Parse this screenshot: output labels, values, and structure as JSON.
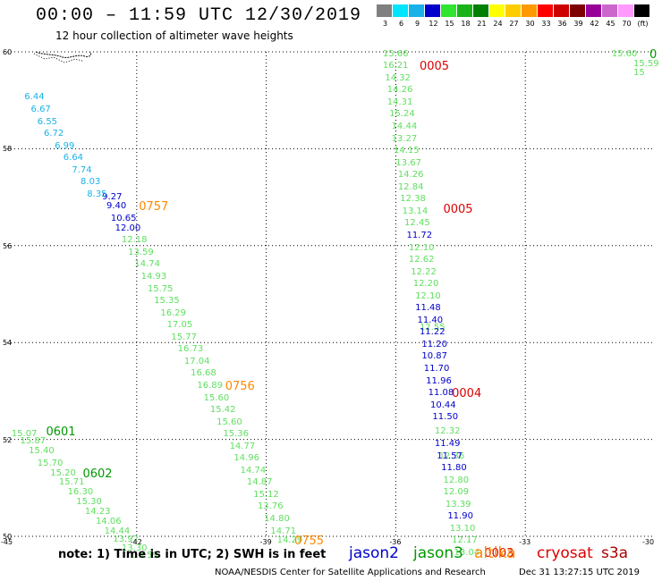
{
  "header": {
    "title": "00:00 – 11:59 UTC 12/30/2019",
    "subtitle": "12 hour collection of altimeter wave heights"
  },
  "color_scale": {
    "labels": [
      "3",
      "6",
      "9",
      "12",
      "15",
      "18",
      "21",
      "24",
      "27",
      "30",
      "33",
      "36",
      "39",
      "42",
      "45",
      "70",
      "(ft)"
    ],
    "colors": [
      "#7f7f7f",
      "#00e5ff",
      "#19b2e8",
      "#0000cc",
      "#2fe52f",
      "#19b219",
      "#007f00",
      "#ffff00",
      "#ffcc00",
      "#ff9900",
      "#ff0000",
      "#cc0000",
      "#7f0000",
      "#990099",
      "#cc66cc",
      "#ff99ff",
      "#000000"
    ]
  },
  "map": {
    "lat_labels": [
      "60",
      "58",
      "56",
      "54",
      "52",
      "50"
    ],
    "lon_labels": [
      "-45",
      "-42",
      "-39",
      "-36",
      "-33",
      "-30"
    ],
    "bounds": {
      "lon": [
        -45,
        -30
      ],
      "lat": [
        50,
        60
      ]
    },
    "palette": {
      "light_blue": "#19b2e8",
      "dark_blue": "#0000cc",
      "light_green": "#5fdf5f",
      "green": "#009900",
      "orange": "#ff8800",
      "red": "#dd0000"
    },
    "tracks": [
      {
        "sat": "jason2",
        "color": "#0000cc",
        "points": [
          {
            "lon": -42.8,
            "lat": 57.0,
            "v": "9.27"
          },
          {
            "lon": -42.7,
            "lat": 56.8,
            "v": "9.40"
          },
          {
            "lon": -42.6,
            "lat": 56.55,
            "v": "10.65"
          },
          {
            "lon": -42.5,
            "lat": 56.35,
            "v": "12.00"
          }
        ]
      },
      {
        "sat": "light-blue",
        "color": "#19b2e8",
        "points": [
          {
            "lon": -44.6,
            "lat": 59.05,
            "v": "6.44"
          },
          {
            "lon": -44.45,
            "lat": 58.8,
            "v": "6.67"
          },
          {
            "lon": -44.3,
            "lat": 58.55,
            "v": "6.55"
          },
          {
            "lon": -44.15,
            "lat": 58.3,
            "v": "6.72"
          },
          {
            "lon": -43.9,
            "lat": 58.05,
            "v": "6.99"
          },
          {
            "lon": -43.7,
            "lat": 57.8,
            "v": "6.64"
          },
          {
            "lon": -43.5,
            "lat": 57.55,
            "v": "7.74"
          },
          {
            "lon": -43.3,
            "lat": 57.3,
            "v": "8.03"
          },
          {
            "lon": -43.15,
            "lat": 57.05,
            "v": "8.35"
          }
        ]
      },
      {
        "sat": "green-track-1",
        "color": "#5fdf5f",
        "points": [
          {
            "lon": -42.35,
            "lat": 56.1,
            "v": "12.18"
          },
          {
            "lon": -42.2,
            "lat": 55.85,
            "v": "13.59"
          },
          {
            "lon": -42.05,
            "lat": 55.6,
            "v": "14.74"
          },
          {
            "lon": -41.9,
            "lat": 55.35,
            "v": "14.93"
          },
          {
            "lon": -41.75,
            "lat": 55.1,
            "v": "15.75"
          },
          {
            "lon": -41.6,
            "lat": 54.85,
            "v": "15.35"
          },
          {
            "lon": -41.45,
            "lat": 54.6,
            "v": "16.29"
          },
          {
            "lon": -41.3,
            "lat": 54.35,
            "v": "17.05"
          },
          {
            "lon": -41.2,
            "lat": 54.1,
            "v": "15.77"
          },
          {
            "lon": -41.05,
            "lat": 53.85,
            "v": "16.73"
          },
          {
            "lon": -40.9,
            "lat": 53.6,
            "v": "17.04"
          },
          {
            "lon": -40.75,
            "lat": 53.35,
            "v": "16.68"
          },
          {
            "lon": -40.6,
            "lat": 53.1,
            "v": "16.89"
          },
          {
            "lon": -40.45,
            "lat": 52.85,
            "v": "15.60"
          },
          {
            "lon": -40.3,
            "lat": 52.6,
            "v": "15.42"
          },
          {
            "lon": -40.15,
            "lat": 52.35,
            "v": "15.60"
          },
          {
            "lon": -40.0,
            "lat": 52.1,
            "v": "15.36"
          },
          {
            "lon": -39.85,
            "lat": 51.85,
            "v": "14.77"
          },
          {
            "lon": -39.75,
            "lat": 51.6,
            "v": "14.96"
          },
          {
            "lon": -39.6,
            "lat": 51.35,
            "v": "14.74"
          },
          {
            "lon": -39.45,
            "lat": 51.1,
            "v": "14.87"
          },
          {
            "lon": -39.3,
            "lat": 50.85,
            "v": "15.12"
          },
          {
            "lon": -39.2,
            "lat": 50.6,
            "v": "13.76"
          },
          {
            "lon": -39.05,
            "lat": 50.35,
            "v": "14.80"
          },
          {
            "lon": -38.9,
            "lat": 50.1,
            "v": "14.71"
          },
          {
            "lon": -38.75,
            "lat": 49.9,
            "v": "14.29"
          }
        ]
      },
      {
        "sat": "green-track-2",
        "color": "#5fdf5f",
        "points": [
          {
            "lon": -44.9,
            "lat": 52.1,
            "v": "15.07"
          },
          {
            "lon": -44.7,
            "lat": 51.95,
            "v": "15.87"
          },
          {
            "lon": -44.5,
            "lat": 51.75,
            "v": "15.40"
          },
          {
            "lon": -44.3,
            "lat": 51.5,
            "v": "15.70"
          },
          {
            "lon": -44.0,
            "lat": 51.3,
            "v": "15.20"
          },
          {
            "lon": -43.8,
            "lat": 51.1,
            "v": "15.71"
          },
          {
            "lon": -43.6,
            "lat": 50.9,
            "v": "16.30"
          },
          {
            "lon": -43.4,
            "lat": 50.7,
            "v": "15.30"
          },
          {
            "lon": -43.2,
            "lat": 50.5,
            "v": "14.23"
          },
          {
            "lon": -42.95,
            "lat": 50.3,
            "v": "14.06"
          },
          {
            "lon": -42.75,
            "lat": 50.1,
            "v": "14.44"
          },
          {
            "lon": -42.55,
            "lat": 49.92,
            "v": "13.92"
          },
          {
            "lon": -42.35,
            "lat": 49.75,
            "v": "13.30"
          },
          {
            "lon": -42.1,
            "lat": 49.6,
            "v": "13.59"
          }
        ]
      },
      {
        "sat": "green-track-3",
        "color": "#5fdf5f",
        "points": [
          {
            "lon": -36.3,
            "lat": 59.95,
            "v": "15.66"
          },
          {
            "lon": -36.3,
            "lat": 59.7,
            "v": "16.21"
          },
          {
            "lon": -36.25,
            "lat": 59.45,
            "v": "14.32"
          },
          {
            "lon": -36.2,
            "lat": 59.2,
            "v": "14.26"
          },
          {
            "lon": -36.2,
            "lat": 58.95,
            "v": "14.31"
          },
          {
            "lon": -36.15,
            "lat": 58.7,
            "v": "15.24"
          },
          {
            "lon": -36.1,
            "lat": 58.45,
            "v": "14.44"
          },
          {
            "lon": -36.1,
            "lat": 58.2,
            "v": "13.27"
          },
          {
            "lon": -36.05,
            "lat": 57.95,
            "v": "14.15"
          },
          {
            "lon": -36.0,
            "lat": 57.7,
            "v": "13.67"
          },
          {
            "lon": -35.95,
            "lat": 57.45,
            "v": "14.26"
          },
          {
            "lon": -35.95,
            "lat": 57.2,
            "v": "12.84"
          },
          {
            "lon": -35.9,
            "lat": 56.95,
            "v": "12.38"
          },
          {
            "lon": -35.85,
            "lat": 56.7,
            "v": "13.14"
          },
          {
            "lon": -35.8,
            "lat": 56.45,
            "v": "12.45"
          },
          {
            "lon": -35.7,
            "lat": 55.95,
            "v": "12.10"
          },
          {
            "lon": -35.7,
            "lat": 55.7,
            "v": "12.62"
          },
          {
            "lon": -35.65,
            "lat": 55.45,
            "v": "12.22"
          },
          {
            "lon": -35.6,
            "lat": 55.2,
            "v": "12.20"
          },
          {
            "lon": -35.55,
            "lat": 54.95,
            "v": "12.10"
          },
          {
            "lon": -35.45,
            "lat": 54.3,
            "v": "12.55"
          },
          {
            "lon": -35.1,
            "lat": 52.15,
            "v": "12.32"
          },
          {
            "lon": -35.0,
            "lat": 51.65,
            "v": "12.36"
          },
          {
            "lon": -34.9,
            "lat": 51.15,
            "v": "12.80"
          },
          {
            "lon": -34.9,
            "lat": 50.9,
            "v": "12.09"
          },
          {
            "lon": -34.85,
            "lat": 50.65,
            "v": "13.39"
          },
          {
            "lon": -34.75,
            "lat": 50.15,
            "v": "13.10"
          },
          {
            "lon": -34.7,
            "lat": 49.9,
            "v": "12.17"
          },
          {
            "lon": -34.65,
            "lat": 49.65,
            "v": "13.04"
          }
        ]
      },
      {
        "sat": "jason2-track-2",
        "color": "#0000cc",
        "points": [
          {
            "lon": -35.75,
            "lat": 56.2,
            "v": "11.72"
          },
          {
            "lon": -35.55,
            "lat": 54.7,
            "v": "11.48"
          },
          {
            "lon": -35.5,
            "lat": 54.45,
            "v": "11.40"
          },
          {
            "lon": -35.45,
            "lat": 54.2,
            "v": "11.22"
          },
          {
            "lon": -35.4,
            "lat": 53.95,
            "v": "11.20"
          },
          {
            "lon": -35.4,
            "lat": 53.7,
            "v": "10.87"
          },
          {
            "lon": -35.35,
            "lat": 53.45,
            "v": "11.70"
          },
          {
            "lon": -35.3,
            "lat": 53.2,
            "v": "11.96"
          },
          {
            "lon": -35.25,
            "lat": 52.95,
            "v": "11.08"
          },
          {
            "lon": -35.2,
            "lat": 52.7,
            "v": "10.44"
          },
          {
            "lon": -35.15,
            "lat": 52.45,
            "v": "11.50"
          },
          {
            "lon": -35.1,
            "lat": 51.9,
            "v": "11.49"
          },
          {
            "lon": -35.05,
            "lat": 51.65,
            "v": "11.57"
          },
          {
            "lon": -34.95,
            "lat": 51.4,
            "v": "11.80"
          },
          {
            "lon": -34.8,
            "lat": 50.4,
            "v": "11.90"
          }
        ]
      },
      {
        "sat": "edge",
        "color": "#5fdf5f",
        "points": [
          {
            "lon": -31.0,
            "lat": 59.95,
            "v": "15.60"
          },
          {
            "lon": -30.4,
            "lat": 59.75,
            "v": "15.59"
          },
          {
            "lon": -30.1,
            "lat": 59.55,
            "v": "15"
          }
        ]
      }
    ],
    "time_labels": [
      {
        "lon": -35.45,
        "lat": 59.7,
        "t": "0005",
        "color": "#dd0000"
      },
      {
        "lon": -34.9,
        "lat": 56.75,
        "t": "0005",
        "color": "#dd0000"
      },
      {
        "lon": -34.7,
        "lat": 52.95,
        "t": "0004",
        "color": "#dd0000"
      },
      {
        "lon": -33.95,
        "lat": 49.65,
        "t": "0003",
        "color": "#dd0000"
      },
      {
        "lon": -41.95,
        "lat": 56.8,
        "t": "0757",
        "color": "#ff8800"
      },
      {
        "lon": -39.95,
        "lat": 53.1,
        "t": "0756",
        "color": "#ff8800"
      },
      {
        "lon": -38.35,
        "lat": 49.9,
        "t": "0755",
        "color": "#ff8800"
      },
      {
        "lon": -44.1,
        "lat": 52.15,
        "t": "0601",
        "color": "#009900"
      },
      {
        "lon": -43.25,
        "lat": 51.3,
        "t": "0602",
        "color": "#009900"
      },
      {
        "lon": -30.05,
        "lat": 59.95,
        "t": "0",
        "color": "#009900"
      }
    ]
  },
  "footer": {
    "note": "note: 1) Time is in UTC; 2) SWH is in feet",
    "legend": [
      {
        "name": "jason2",
        "color": "#0000cc"
      },
      {
        "name": "jason3",
        "color": "#009900"
      },
      {
        "name": "altika",
        "color": "#ff8800"
      },
      {
        "name": "cryosat",
        "color": "#dd0000"
      },
      {
        "name": "s3a",
        "color": "#aa0000"
      }
    ],
    "credit": "NOAA/NESDIS Center for Satellite Applications and Research",
    "timestamp": "Dec 31 13:27:15 UTC 2019"
  }
}
